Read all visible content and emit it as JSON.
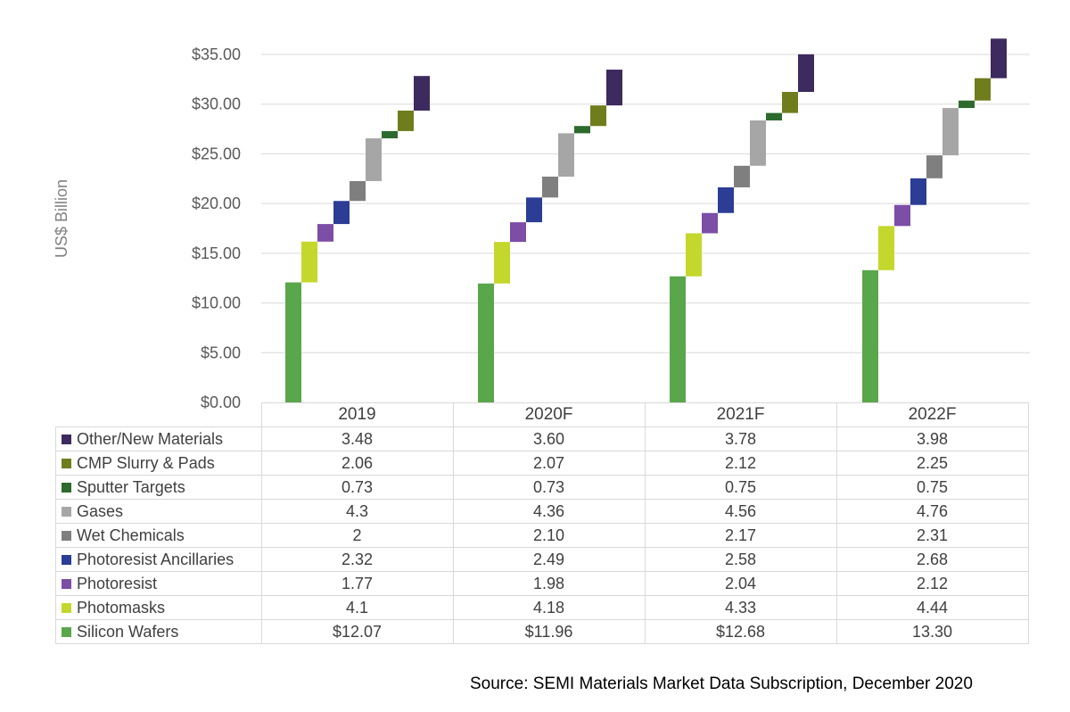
{
  "chart_data": {
    "type": "bar",
    "subtype": "stacked-waterfall",
    "ylabel": "US$ Billion",
    "ylim": [
      0,
      35
    ],
    "y_ticks": [
      "$0.00",
      "$5.00",
      "$10.00",
      "$15.00",
      "$20.00",
      "$25.00",
      "$30.00",
      "$35.00"
    ],
    "grid": true,
    "categories": [
      "2019",
      "2020F",
      "2021F",
      "2022F"
    ],
    "series": [
      {
        "name": "Silicon Wafers",
        "color": "#5aa64b",
        "values": [
          12.07,
          11.96,
          12.68,
          13.3
        ],
        "labels": [
          "$12.07",
          "$11.96",
          "$12.68",
          "13.30"
        ]
      },
      {
        "name": "Photomasks",
        "color": "#c4d72c",
        "values": [
          4.1,
          4.18,
          4.33,
          4.44
        ],
        "labels": [
          "4.1",
          "4.18",
          "4.33",
          "4.44"
        ]
      },
      {
        "name": "Photoresist",
        "color": "#7c4ea6",
        "values": [
          1.77,
          1.98,
          2.04,
          2.12
        ],
        "labels": [
          "1.77",
          "1.98",
          "2.04",
          "2.12"
        ]
      },
      {
        "name": "Photoresist Ancillaries",
        "color": "#2b3d95",
        "values": [
          2.32,
          2.49,
          2.58,
          2.68
        ],
        "labels": [
          "2.32",
          "2.49",
          "2.58",
          "2.68"
        ]
      },
      {
        "name": "Wet Chemicals",
        "color": "#7f7f7f",
        "values": [
          2,
          2.1,
          2.17,
          2.31
        ],
        "labels": [
          "2",
          "2.10",
          "2.17",
          "2.31"
        ]
      },
      {
        "name": "Gases",
        "color": "#a6a6a6",
        "values": [
          4.3,
          4.36,
          4.56,
          4.76
        ],
        "labels": [
          "4.3",
          "4.36",
          "4.56",
          "4.76"
        ]
      },
      {
        "name": "Sputter Targets",
        "color": "#2d6a2d",
        "values": [
          0.73,
          0.73,
          0.75,
          0.75
        ],
        "labels": [
          "0.73",
          "0.73",
          "0.75",
          "0.75"
        ]
      },
      {
        "name": "CMP Slurry & Pads",
        "color": "#6f7d1d",
        "values": [
          2.06,
          2.07,
          2.12,
          2.25
        ],
        "labels": [
          "2.06",
          "2.07",
          "2.12",
          "2.25"
        ]
      },
      {
        "name": "Other/New Materials",
        "color": "#3d2a5e",
        "values": [
          3.48,
          3.6,
          3.78,
          3.98
        ],
        "labels": [
          "3.48",
          "3.60",
          "3.78",
          "3.98"
        ]
      }
    ]
  },
  "source": "Source: SEMI Materials Market Data Subscription, December 2020"
}
